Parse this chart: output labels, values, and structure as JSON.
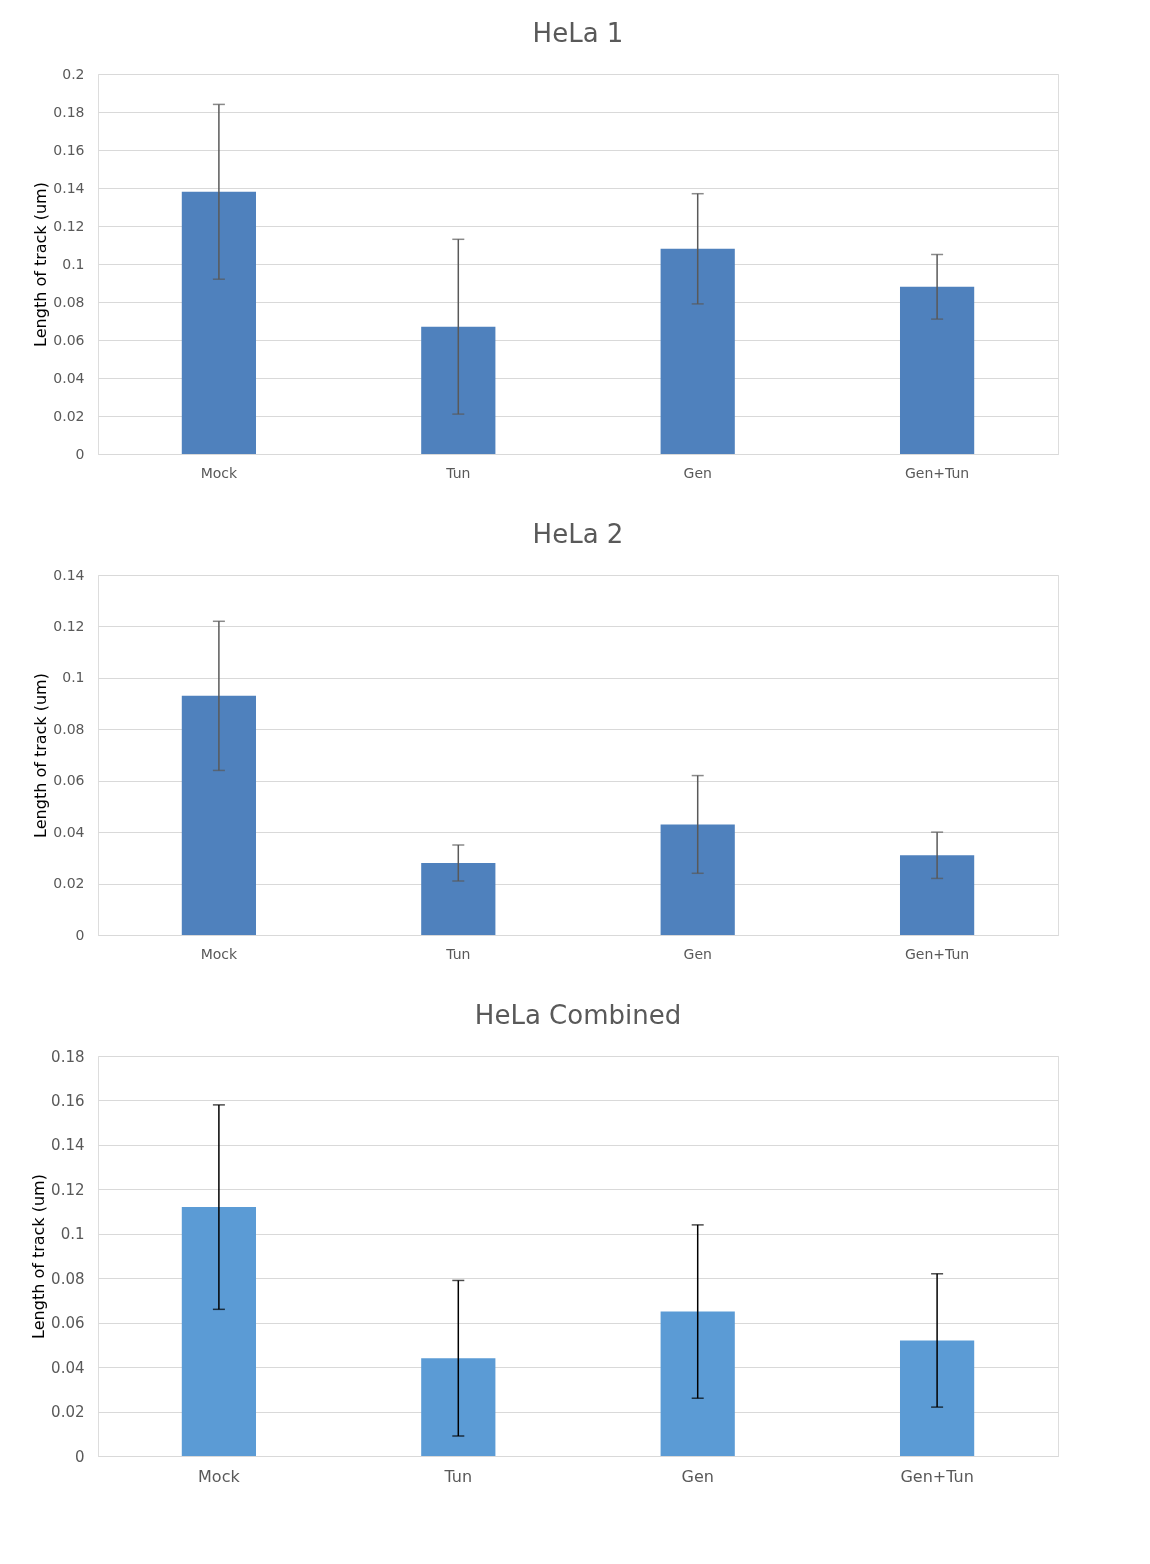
{
  "chart_data": [
    {
      "type": "bar",
      "title": "HeLa 1",
      "ylabel": "Length of track (um)",
      "categories": [
        "Mock",
        "Tun",
        "Gen",
        "Gen+Tun"
      ],
      "values": [
        0.138,
        0.067,
        0.108,
        0.088
      ],
      "errors": [
        0.046,
        0.046,
        0.029,
        0.017
      ],
      "color": "#4f81bd",
      "ylim": [
        0,
        0.2
      ],
      "yticks": [
        0,
        0.02,
        0.04,
        0.06,
        0.08,
        0.1,
        0.12,
        0.14,
        0.16,
        0.18,
        0.2
      ],
      "grid": "y"
    },
    {
      "type": "bar",
      "title": "HeLa 2",
      "ylabel": "Length of track (um)",
      "categories": [
        "Mock",
        "Tun",
        "Gen",
        "Gen+Tun"
      ],
      "values": [
        0.093,
        0.028,
        0.043,
        0.031
      ],
      "errors": [
        0.029,
        0.007,
        0.019,
        0.009
      ],
      "color": "#4f81bd",
      "ylim": [
        0,
        0.14
      ],
      "yticks": [
        0,
        0.02,
        0.04,
        0.06,
        0.08,
        0.1,
        0.12,
        0.14
      ],
      "grid": "y"
    },
    {
      "type": "bar",
      "title": "HeLa Combined",
      "ylabel": "Length of track (um)",
      "categories": [
        "Mock",
        "Tun",
        "Gen",
        "Gen+Tun"
      ],
      "values": [
        0.112,
        0.044,
        0.065,
        0.052
      ],
      "errors": [
        0.046,
        0.035,
        0.039,
        0.03
      ],
      "color": "#5b9bd5",
      "ylim": [
        0,
        0.18
      ],
      "yticks": [
        0,
        0.02,
        0.04,
        0.06,
        0.08,
        0.1,
        0.12,
        0.14,
        0.16,
        0.18
      ],
      "grid": "y"
    }
  ]
}
